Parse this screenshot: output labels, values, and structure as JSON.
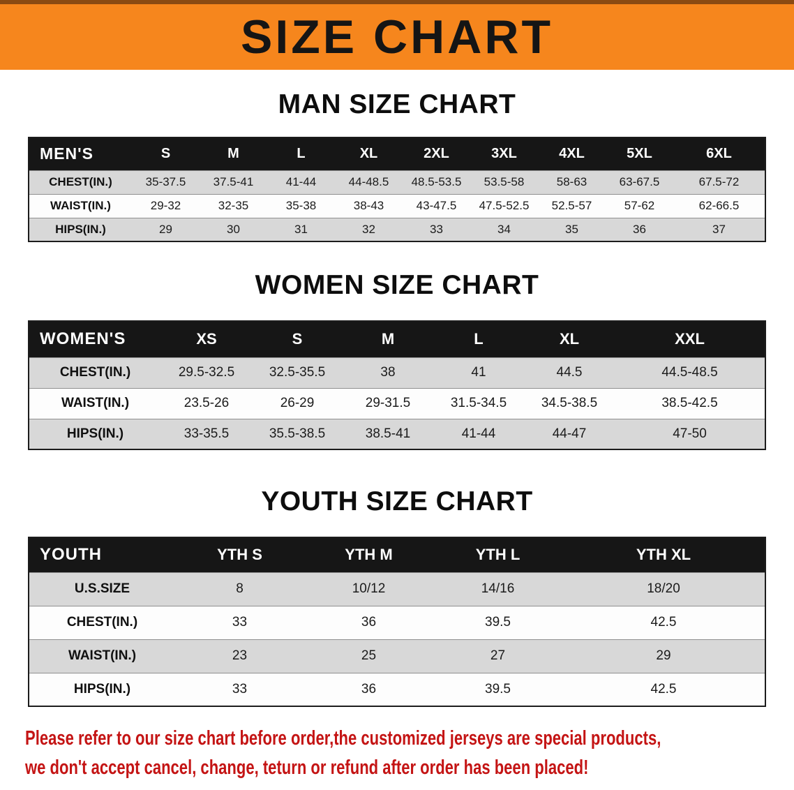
{
  "banner": {
    "title": "SIZE CHART",
    "bg_color": "#F6861D"
  },
  "sections": {
    "men": {
      "heading": "MAN SIZE CHART",
      "table": {
        "header": [
          "MEN'S",
          "S",
          "M",
          "L",
          "XL",
          "2XL",
          "3XL",
          "4XL",
          "5XL",
          "6XL"
        ],
        "rows": [
          [
            "CHEST(IN.)",
            "35-37.5",
            "37.5-41",
            "41-44",
            "44-48.5",
            "48.5-53.5",
            "53.5-58",
            "58-63",
            "63-67.5",
            "67.5-72"
          ],
          [
            "WAIST(IN.)",
            "29-32",
            "32-35",
            "35-38",
            "38-43",
            "43-47.5",
            "47.5-52.5",
            "52.5-57",
            "57-62",
            "62-66.5"
          ],
          [
            "HIPS(IN.)",
            "29",
            "30",
            "31",
            "32",
            "33",
            "34",
            "35",
            "36",
            "37"
          ]
        ]
      }
    },
    "women": {
      "heading": "WOMEN SIZE CHART",
      "table": {
        "header": [
          "WOMEN'S",
          "XS",
          "S",
          "M",
          "L",
          "XL",
          "XXL"
        ],
        "rows": [
          [
            "CHEST(IN.)",
            "29.5-32.5",
            "32.5-35.5",
            "38",
            "41",
            "44.5",
            "44.5-48.5"
          ],
          [
            "WAIST(IN.)",
            "23.5-26",
            "26-29",
            "29-31.5",
            "31.5-34.5",
            "34.5-38.5",
            "38.5-42.5"
          ],
          [
            "HIPS(IN.)",
            "33-35.5",
            "35.5-38.5",
            "38.5-41",
            "41-44",
            "44-47",
            "47-50"
          ]
        ]
      }
    },
    "youth": {
      "heading": "YOUTH SIZE CHART",
      "table": {
        "header": [
          "YOUTH",
          "YTH S",
          "YTH M",
          "YTH L",
          "YTH XL"
        ],
        "rows": [
          [
            "U.S.SIZE",
            "8",
            "10/12",
            "14/16",
            "18/20"
          ],
          [
            "CHEST(IN.)",
            "33",
            "36",
            "39.5",
            "42.5"
          ],
          [
            "WAIST(IN.)",
            "23",
            "25",
            "27",
            "29"
          ],
          [
            "HIPS(IN.)",
            "33",
            "36",
            "39.5",
            "42.5"
          ]
        ]
      }
    }
  },
  "disclaimer": {
    "color": "#C41414",
    "lines": [
      "Please refer to our size chart before order,the customized jerseys are special products,",
      "we don't accept cancel, change, teturn or refund after order has been placed!"
    ]
  }
}
